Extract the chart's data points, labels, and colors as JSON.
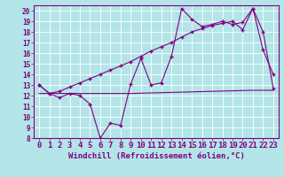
{
  "xlabel": "Windchill (Refroidissement éolien,°C)",
  "background_color": "#b3e5e8",
  "grid_color": "#c8e8e8",
  "line_color": "#800080",
  "xlim": [
    -0.5,
    23.5
  ],
  "ylim": [
    8,
    20.5
  ],
  "xticks": [
    0,
    1,
    2,
    3,
    4,
    5,
    6,
    7,
    8,
    9,
    10,
    11,
    12,
    13,
    14,
    15,
    16,
    17,
    18,
    19,
    20,
    21,
    22,
    23
  ],
  "yticks": [
    8,
    9,
    10,
    11,
    12,
    13,
    14,
    15,
    16,
    17,
    18,
    19,
    20
  ],
  "line1_x": [
    0,
    1,
    2,
    3,
    4,
    5,
    6,
    7,
    8,
    9,
    10,
    11,
    12,
    13,
    14,
    15,
    16,
    17,
    18,
    19,
    20,
    21,
    22,
    23
  ],
  "line1_y": [
    13.0,
    12.2,
    11.8,
    12.2,
    12.0,
    11.2,
    8.0,
    9.4,
    9.2,
    13.1,
    15.5,
    13.0,
    13.2,
    15.7,
    20.2,
    19.2,
    18.5,
    18.7,
    19.0,
    18.7,
    18.9,
    20.2,
    16.3,
    14.0
  ],
  "line2_x": [
    0,
    1,
    2,
    3,
    4,
    5,
    6,
    7,
    8,
    9,
    10,
    11,
    12,
    13,
    14,
    15,
    16,
    17,
    18,
    19,
    20,
    21,
    22,
    23
  ],
  "line2_y": [
    13.0,
    12.2,
    12.4,
    12.8,
    13.2,
    13.6,
    14.0,
    14.4,
    14.8,
    15.2,
    15.7,
    16.2,
    16.6,
    17.0,
    17.5,
    18.0,
    18.3,
    18.6,
    18.8,
    19.0,
    18.2,
    20.2,
    18.0,
    12.7
  ],
  "line3_x": [
    0,
    9,
    21,
    23
  ],
  "line3_y": [
    12.2,
    12.2,
    12.5,
    12.5
  ],
  "xlabel_fontsize": 6.5,
  "tick_fontsize": 5.5,
  "figwidth": 3.2,
  "figheight": 2.0,
  "dpi": 100
}
